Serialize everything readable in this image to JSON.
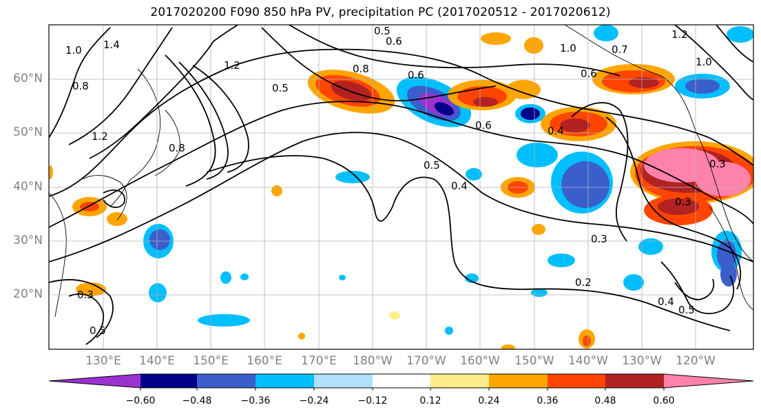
{
  "title": "2017020200 F090 850 hPa PV, precipitation PC (2017020512 - 2017020612)",
  "lat_labels": [
    "60°N",
    "50°N",
    "40°N",
    "30°N",
    "20°N"
  ],
  "lon_labels": [
    "130°E",
    "140°E",
    "150°E",
    "160°E",
    "170°E",
    "180°W",
    "170°W",
    "160°W",
    "150°W",
    "140°W",
    "130°W",
    "120°W"
  ],
  "contour_labels": [
    "1.0",
    "1.4",
    "1.2",
    "0.8",
    "1.2",
    "0.8",
    "0.5",
    "0.6",
    "0.8",
    "0.6",
    "0.5",
    "0.6",
    "0.4",
    "0.5",
    "0.4",
    "0.3",
    "0.2",
    "0.3",
    "0.5",
    "0.5",
    "0.4",
    "0.6",
    "0.3",
    "1.0",
    "0.7",
    "1.2",
    "1.0",
    "0.3"
  ],
  "colorbar": {
    "tick_labels": [
      "−0.60",
      "−0.48",
      "−0.36",
      "−0.24",
      "−0.12",
      "0.12",
      "0.24",
      "0.36",
      "0.48",
      "0.60"
    ],
    "colors": [
      "#9a32cd",
      "#00008b",
      "#3a5fcd",
      "#00bfff",
      "#b0e2ff",
      "#ffffff",
      "#ffec8b",
      "#ffa500",
      "#ff4500",
      "#b22222",
      "#ff82ab"
    ]
  },
  "colors": {
    "grid": "#b0b0b0",
    "label_gray": "#808080"
  }
}
